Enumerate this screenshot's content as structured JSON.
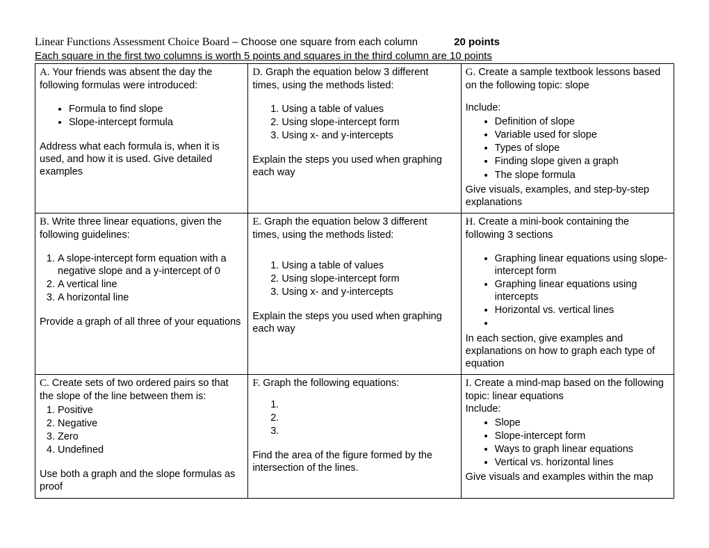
{
  "header": {
    "title_serif": "Linear Functions Assessment Choice Board",
    "title_rest": " – Choose one square from each column",
    "points": "20 points",
    "subtitle": "Each square in the first two columns is worth 5 points and squares in the third column are 10 points"
  },
  "cells": {
    "A": {
      "label": "A.",
      "intro": " Your friends was absent the day the following formulas were introduced:",
      "bullets": [
        "Formula to find slope",
        "Slope-intercept formula"
      ],
      "outro": "Address what each formula is, when it is used, and how it is used.  Give detailed examples"
    },
    "B": {
      "label": "B.",
      "intro": " Write three linear equations, given the following guidelines:",
      "items": [
        "A slope-intercept form equation with a negative slope and a y-intercept of 0",
        "A vertical line",
        "A horizontal line"
      ],
      "outro": "Provide a graph of all three of your equations"
    },
    "C": {
      "label": "C.",
      "intro": " Create sets of two ordered pairs so that the slope of the line between them is:",
      "items": [
        "Positive",
        "Negative",
        "Zero",
        "Undefined"
      ],
      "outro": "Use both a graph and the slope formulas as proof"
    },
    "D": {
      "label": "D.",
      "intro": " Graph the equation below 3 different times, using the methods listed:",
      "items": [
        "Using a table of values",
        "Using slope-intercept form",
        "Using x- and y-intercepts"
      ],
      "outro": "Explain the steps you used when graphing each way"
    },
    "E": {
      "label": "E.",
      "intro": " Graph the equation below 3 different times, using the methods listed:",
      "items": [
        "Using a table of values",
        "Using slope-intercept form",
        "Using x- and y-intercepts"
      ],
      "outro": "Explain the steps you used when graphing each way"
    },
    "F": {
      "label": "F.",
      "intro": " Graph the following equations:",
      "items": [
        "",
        "",
        ""
      ],
      "outro": "Find the area of the figure formed by the intersection of the lines."
    },
    "G": {
      "label": "G.",
      "intro": " Create a sample textbook lessons based on the following topic: slope",
      "include_label": "Include:",
      "bullets": [
        "Definition of slope",
        "Variable used for slope",
        "Types of slope",
        "Finding slope given a graph",
        "The slope formula"
      ],
      "outro": "Give visuals, examples, and step-by-step explanations"
    },
    "H": {
      "label": "H.",
      "intro": " Create a mini-book containing the following 3 sections",
      "bullets": [
        "Graphing linear equations using slope-intercept form",
        "Graphing linear equations using intercepts",
        "Horizontal vs. vertical lines",
        ""
      ],
      "outro": "In each section, give examples and explanations on how to graph each type of equation"
    },
    "I": {
      "label": "I.",
      "intro": " Create a mind-map based on the following topic: linear equations",
      "include_label": "Include:",
      "bullets": [
        "Slope",
        "Slope-intercept form",
        "Ways to graph linear equations",
        "Vertical vs. horizontal lines"
      ],
      "outro": "Give visuals and examples within the map"
    }
  }
}
